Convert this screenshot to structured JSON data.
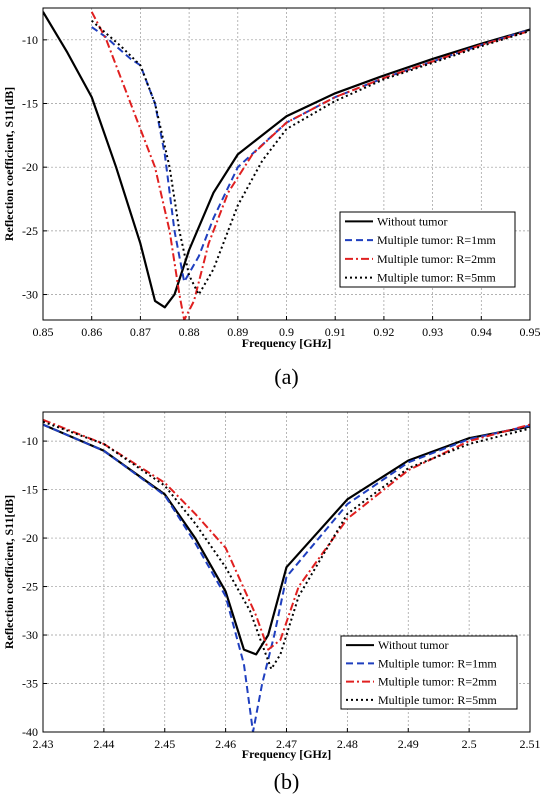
{
  "chart_data": [
    {
      "type": "line",
      "caption": "(a)",
      "xlabel": "Frequency [GHz]",
      "ylabel": "Reflection coefficient, S11[dB]",
      "xlim": [
        0.85,
        0.95
      ],
      "ylim": [
        -32,
        -7.5
      ],
      "xticks": [
        0.85,
        0.86,
        0.87,
        0.88,
        0.89,
        0.9,
        0.91,
        0.92,
        0.93,
        0.94,
        0.95
      ],
      "xtick_labels": [
        "0.85",
        "0.86",
        "0.87",
        "0.88",
        "0.89",
        "0.9",
        "0.91",
        "0.92",
        "0.93",
        "0.94",
        "0.95"
      ],
      "yticks": [
        -30,
        -25,
        -20,
        -15,
        -10
      ],
      "ytick_labels": [
        "-30",
        "-25",
        "-20",
        "-15",
        "-10"
      ],
      "grid": true,
      "legend_position": "bottom-right",
      "series": [
        {
          "name": "Without tumor",
          "color": "#000000",
          "dash": "solid",
          "x": [
            0.85,
            0.855,
            0.86,
            0.865,
            0.87,
            0.873,
            0.875,
            0.877,
            0.88,
            0.885,
            0.89,
            0.9,
            0.91,
            0.92,
            0.93,
            0.94,
            0.95
          ],
          "y": [
            -7.8,
            -11,
            -14.5,
            -20,
            -26,
            -30.5,
            -31,
            -30,
            -26.5,
            -22,
            -19,
            -16,
            -14.2,
            -12.8,
            -11.5,
            -10.3,
            -9.2
          ]
        },
        {
          "name": "Multiple tumor: R=1mm",
          "color": "#1f3fbf",
          "dash": "dashed",
          "x": [
            0.86,
            0.863,
            0.865,
            0.868,
            0.87,
            0.873,
            0.875,
            0.877,
            0.879,
            0.882,
            0.885,
            0.89,
            0.9,
            0.91,
            0.92,
            0.93,
            0.94,
            0.95
          ],
          "y": [
            -9,
            -9.8,
            -10.5,
            -11.5,
            -12,
            -15,
            -19,
            -25,
            -29,
            -27,
            -24,
            -20,
            -16.5,
            -14.5,
            -13,
            -11.7,
            -10.4,
            -9.2
          ]
        },
        {
          "name": "Multiple tumor: R=2mm",
          "color": "#e02020",
          "dash": "dashdot",
          "x": [
            0.86,
            0.863,
            0.866,
            0.87,
            0.873,
            0.876,
            0.878,
            0.879,
            0.881,
            0.884,
            0.888,
            0.893,
            0.9,
            0.91,
            0.92,
            0.93,
            0.94,
            0.95
          ],
          "y": [
            -7.8,
            -10,
            -13,
            -17,
            -20,
            -25,
            -30,
            -32,
            -30.5,
            -26,
            -22,
            -19,
            -16.5,
            -14.5,
            -13,
            -11.7,
            -10.4,
            -9.3
          ]
        },
        {
          "name": "Multiple tumor: R=5mm",
          "color": "#000000",
          "dash": "dotted",
          "x": [
            0.86,
            0.863,
            0.866,
            0.87,
            0.873,
            0.876,
            0.878,
            0.88,
            0.882,
            0.885,
            0.89,
            0.895,
            0.9,
            0.91,
            0.92,
            0.93,
            0.94,
            0.95
          ],
          "y": [
            -8.5,
            -9.5,
            -10.5,
            -12,
            -15,
            -20,
            -25,
            -28.5,
            -30,
            -28,
            -23,
            -19.5,
            -17,
            -14.8,
            -13.1,
            -11.8,
            -10.5,
            -9.3
          ]
        }
      ]
    },
    {
      "type": "line",
      "caption": "(b)",
      "xlabel": "Frequency [GHz]",
      "ylabel": "Reflection coefficient, S11[dB]",
      "xlim": [
        2.43,
        2.51
      ],
      "ylim": [
        -40,
        -7
      ],
      "xticks": [
        2.43,
        2.44,
        2.45,
        2.46,
        2.47,
        2.48,
        2.49,
        2.5,
        2.51
      ],
      "xtick_labels": [
        "2.43",
        "2.44",
        "2.45",
        "2.46",
        "2.47",
        "2.48",
        "2.49",
        "2.5",
        "2.51"
      ],
      "yticks": [
        -40,
        -35,
        -30,
        -25,
        -20,
        -15,
        -10
      ],
      "ytick_labels": [
        "-40",
        "-35",
        "-30",
        "-25",
        "-20",
        "-15",
        "-10"
      ],
      "grid": true,
      "legend_position": "bottom-right",
      "series": [
        {
          "name": "Without tumor",
          "color": "#000000",
          "dash": "solid",
          "x": [
            2.43,
            2.44,
            2.45,
            2.455,
            2.46,
            2.463,
            2.465,
            2.467,
            2.47,
            2.48,
            2.49,
            2.5,
            2.51
          ],
          "y": [
            -8.3,
            -11,
            -15.5,
            -20,
            -25.5,
            -31.5,
            -32,
            -30,
            -23,
            -16,
            -12,
            -9.7,
            -8.5
          ]
        },
        {
          "name": "Multiple tumor: R=1mm",
          "color": "#1f3fbf",
          "dash": "dashed",
          "x": [
            2.43,
            2.44,
            2.45,
            2.455,
            2.46,
            2.463,
            2.4645,
            2.466,
            2.468,
            2.47,
            2.48,
            2.49,
            2.5,
            2.51
          ],
          "y": [
            -8.3,
            -11,
            -15.6,
            -20.5,
            -26,
            -33,
            -40,
            -35,
            -30,
            -24,
            -16.5,
            -12.2,
            -9.8,
            -8.4
          ]
        },
        {
          "name": "Multiple tumor: R=2mm",
          "color": "#e02020",
          "dash": "dashdot",
          "x": [
            2.43,
            2.44,
            2.45,
            2.455,
            2.46,
            2.465,
            2.467,
            2.469,
            2.472,
            2.48,
            2.49,
            2.5,
            2.51
          ],
          "y": [
            -7.8,
            -10.3,
            -14.3,
            -17.5,
            -21,
            -28,
            -31.5,
            -30.5,
            -25,
            -18,
            -13,
            -10,
            -8.3
          ]
        },
        {
          "name": "Multiple tumor: R=5mm",
          "color": "#000000",
          "dash": "dotted",
          "x": [
            2.43,
            2.44,
            2.45,
            2.455,
            2.46,
            2.464,
            2.466,
            2.4675,
            2.469,
            2.472,
            2.48,
            2.49,
            2.5,
            2.51
          ],
          "y": [
            -8,
            -10.3,
            -14.6,
            -18.5,
            -23,
            -27.5,
            -31,
            -33.5,
            -32,
            -26,
            -17.5,
            -12.8,
            -10.3,
            -8.7
          ]
        }
      ]
    }
  ]
}
